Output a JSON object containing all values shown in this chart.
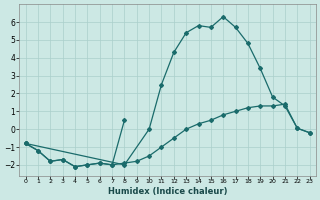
{
  "xlabel": "Humidex (Indice chaleur)",
  "background_color": "#cce8e4",
  "grid_color": "#aacfcb",
  "line_color": "#1a6b6b",
  "xlim": [
    -0.5,
    23.5
  ],
  "ylim": [
    -2.6,
    7.0
  ],
  "yticks": [
    -2,
    -1,
    0,
    1,
    2,
    3,
    4,
    5,
    6
  ],
  "xticks": [
    0,
    1,
    2,
    3,
    4,
    5,
    6,
    7,
    8,
    9,
    10,
    11,
    12,
    13,
    14,
    15,
    16,
    17,
    18,
    19,
    20,
    21,
    22,
    23
  ],
  "curve_main_x": [
    0,
    8,
    10,
    11,
    12,
    13,
    14,
    15,
    16,
    17,
    18,
    19,
    20,
    21,
    22,
    23
  ],
  "curve_main_y": [
    -0.8,
    -2.0,
    0.0,
    2.5,
    4.3,
    5.4,
    5.8,
    5.7,
    6.3,
    5.7,
    4.8,
    3.4,
    1.8,
    1.3,
    0.05,
    -0.2
  ],
  "curve_lower_x": [
    0,
    1,
    2,
    3,
    4,
    5,
    6,
    7,
    8,
    9,
    10,
    11,
    12,
    13,
    14,
    15,
    16,
    17,
    18,
    19,
    20,
    21,
    22,
    23
  ],
  "curve_lower_y": [
    -0.8,
    -1.2,
    -1.8,
    -1.7,
    -2.1,
    -2.0,
    -1.9,
    -2.0,
    -1.9,
    -1.8,
    -1.5,
    -1.0,
    -0.5,
    0.0,
    0.3,
    0.5,
    0.8,
    1.0,
    1.2,
    1.3,
    1.3,
    1.4,
    0.05,
    -0.2
  ],
  "curve_spike_x": [
    0,
    1,
    2,
    3,
    4,
    5,
    6,
    7,
    8
  ],
  "curve_spike_y": [
    -0.8,
    -1.2,
    -1.8,
    -1.7,
    -2.1,
    -2.0,
    -1.9,
    -2.0,
    0.5
  ],
  "marker": "D",
  "markersize": 2.0,
  "linewidth": 0.9
}
